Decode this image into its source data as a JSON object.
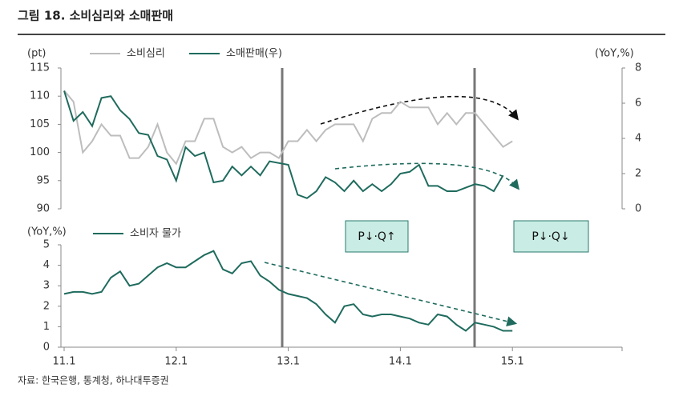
{
  "chart_data": {
    "type": "line",
    "title": "그림 18. 소비심리와 소매판매",
    "source": "자료: 한국은행, 통계청, 하나대투증권",
    "categories": [
      "11.1",
      null,
      null,
      null,
      null,
      null,
      null,
      null,
      null,
      null,
      null,
      null,
      "12.1",
      null,
      null,
      null,
      null,
      null,
      null,
      null,
      null,
      null,
      null,
      null,
      "13.1",
      null,
      null,
      null,
      null,
      null,
      null,
      null,
      null,
      null,
      null,
      null,
      "14.1",
      null,
      null,
      null,
      null,
      null,
      null,
      null,
      null,
      null,
      null,
      null,
      "15.1",
      null,
      null,
      null,
      null,
      null,
      null,
      null,
      null,
      null,
      null,
      null
    ],
    "annotations": [
      "P↓·Q↑",
      "P↓·Q↓"
    ],
    "panels": [
      {
        "ylabel": "(pt)",
        "ylim": [
          90,
          115
        ],
        "yticks": [
          90,
          95,
          100,
          105,
          110,
          115
        ],
        "y2label": "(YoY,%)",
        "y2lim": [
          0,
          8
        ],
        "y2ticks": [
          0,
          2,
          4,
          6,
          8
        ],
        "series": [
          {
            "name": "소비심리",
            "color": "#bdbdbd",
            "axis": "y",
            "values": [
              111,
              109,
              100,
              102,
              105,
              103,
              103,
              99,
              99,
              101,
              105,
              100,
              98,
              102,
              102,
              106,
              106,
              101,
              100,
              101,
              99,
              100,
              100,
              99,
              102,
              102,
              104,
              102,
              104,
              105,
              105,
              105,
              102,
              106,
              107,
              107,
              109,
              108,
              108,
              108,
              105,
              107,
              105,
              107,
              107,
              105,
              103,
              101,
              102,
              null,
              null,
              null,
              null,
              null,
              null,
              null,
              null,
              null,
              null,
              null
            ]
          },
          {
            "name": "소매판매(우)",
            "color": "#1f6b5e",
            "axis": "y2",
            "values": [
              6.7,
              5.0,
              5.5,
              4.7,
              6.3,
              6.4,
              5.6,
              5.1,
              4.3,
              4.2,
              3.0,
              2.8,
              1.6,
              3.5,
              3.0,
              3.2,
              1.5,
              1.6,
              2.4,
              1.9,
              2.4,
              1.9,
              2.7,
              2.6,
              2.5,
              0.8,
              0.6,
              1.0,
              1.8,
              1.5,
              1.0,
              1.6,
              1.0,
              1.4,
              1.0,
              1.4,
              2.0,
              2.1,
              2.5,
              1.3,
              1.3,
              1.0,
              1.0,
              1.2,
              1.4,
              1.3,
              1.0,
              1.9,
              null,
              null,
              null,
              null,
              null,
              null,
              null,
              null,
              null,
              null,
              null,
              null
            ]
          }
        ]
      },
      {
        "ylabel": "(YoY,%)",
        "ylim": [
          0,
          5
        ],
        "yticks": [
          0,
          1,
          2,
          3,
          4,
          5
        ],
        "series": [
          {
            "name": "소비자 물가",
            "color": "#1f6b5e",
            "axis": "y",
            "values": [
              2.6,
              2.7,
              2.7,
              2.6,
              2.7,
              3.4,
              3.7,
              3.0,
              3.1,
              3.5,
              3.9,
              4.1,
              3.9,
              3.9,
              4.2,
              4.5,
              4.7,
              3.8,
              3.6,
              4.1,
              4.2,
              3.5,
              3.2,
              2.8,
              2.6,
              2.5,
              2.4,
              2.1,
              1.6,
              1.2,
              2.0,
              2.1,
              1.6,
              1.5,
              1.6,
              1.6,
              1.5,
              1.4,
              1.2,
              1.1,
              1.6,
              1.5,
              1.1,
              0.8,
              1.2,
              1.1,
              1.0,
              0.8,
              0.8,
              null,
              null,
              null,
              null,
              null,
              null,
              null,
              null,
              null,
              null,
              null
            ]
          }
        ]
      }
    ]
  }
}
